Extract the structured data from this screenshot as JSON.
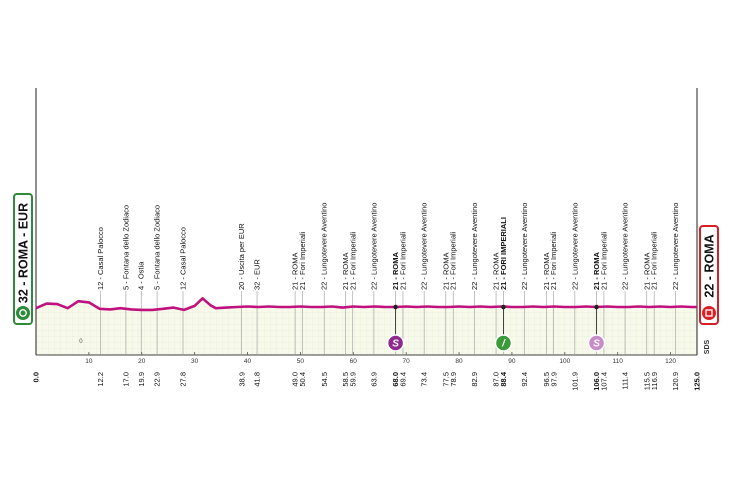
{
  "chart_data": {
    "type": "area",
    "x_unit": "km",
    "xlim": [
      0,
      125
    ],
    "start": {
      "label": "32 - ROMA - EUR",
      "border_color": "#2e8b3a"
    },
    "finish": {
      "label": "22 - ROMA",
      "border_color": "#d81f26"
    },
    "km_ticks": [
      10,
      20,
      30,
      40,
      50,
      60,
      70,
      80,
      90,
      100,
      110,
      120
    ],
    "axis_bottom_marks": [
      {
        "km": 0.0,
        "text": "0.0",
        "bold": true
      },
      {
        "km": 12.2,
        "text": "12.2"
      },
      {
        "km": 17.0,
        "text": "17.0"
      },
      {
        "km": 19.9,
        "text": "19.9"
      },
      {
        "km": 22.9,
        "text": "22.9"
      },
      {
        "km": 27.8,
        "text": "27.8"
      },
      {
        "km": 38.9,
        "text": "38.9"
      },
      {
        "km": 41.8,
        "text": "41.8"
      },
      {
        "km": 49.0,
        "text": "49.0"
      },
      {
        "km": 50.4,
        "text": "50.4"
      },
      {
        "km": 54.5,
        "text": "54.5"
      },
      {
        "km": 58.5,
        "text": "58.5"
      },
      {
        "km": 59.9,
        "text": "59.9"
      },
      {
        "km": 63.9,
        "text": "63.9"
      },
      {
        "km": 68.0,
        "text": "68.0",
        "bold": true
      },
      {
        "km": 69.4,
        "text": "69.4"
      },
      {
        "km": 73.4,
        "text": "73.4"
      },
      {
        "km": 77.5,
        "text": "77.5"
      },
      {
        "km": 78.9,
        "text": "78.9"
      },
      {
        "km": 82.9,
        "text": "82.9"
      },
      {
        "km": 87.0,
        "text": "87.0"
      },
      {
        "km": 88.4,
        "text": "88.4",
        "bold": true
      },
      {
        "km": 92.4,
        "text": "92.4"
      },
      {
        "km": 96.5,
        "text": "96.5"
      },
      {
        "km": 97.9,
        "text": "97.9"
      },
      {
        "km": 101.9,
        "text": "101.9"
      },
      {
        "km": 106.0,
        "text": "106.0",
        "bold": true
      },
      {
        "km": 107.4,
        "text": "107.4"
      },
      {
        "km": 111.4,
        "text": "111.4"
      },
      {
        "km": 115.5,
        "text": "115.5"
      },
      {
        "km": 116.9,
        "text": "116.9"
      },
      {
        "km": 120.9,
        "text": "120.9"
      },
      {
        "km": 125.0,
        "text": "125.0",
        "bold": true
      }
    ],
    "waypoints": [
      {
        "km": 12.2,
        "text": "12 - Casal Palocco"
      },
      {
        "km": 17.0,
        "text": "5 - Fontana dello Zodiaco"
      },
      {
        "km": 19.9,
        "text": "4 - Ostia"
      },
      {
        "km": 22.9,
        "text": "5 - Fontana dello Zodiaco"
      },
      {
        "km": 27.8,
        "text": "12 - Casal Palocco"
      },
      {
        "km": 38.9,
        "text": "20 - Uscita per EUR"
      },
      {
        "km": 41.8,
        "text": "32 - EUR"
      },
      {
        "km": 49.0,
        "text": "21 - ROMA"
      },
      {
        "km": 50.4,
        "text": "21 - Fori Imperiali"
      },
      {
        "km": 54.5,
        "text": "22 - Lungotevere Aventino"
      },
      {
        "km": 58.5,
        "text": "21 - ROMA"
      },
      {
        "km": 59.9,
        "text": "21 - Fori Imperiali"
      },
      {
        "km": 63.9,
        "text": "22 - Lungotevere Aventino"
      },
      {
        "km": 68.0,
        "text": "21 - ROMA",
        "bold": true
      },
      {
        "km": 69.4,
        "text": "21 - Fori Imperiali"
      },
      {
        "km": 73.4,
        "text": "22 - Lungotevere Aventino"
      },
      {
        "km": 77.5,
        "text": "21 - ROMA"
      },
      {
        "km": 78.9,
        "text": "21 - Fori Imperiali"
      },
      {
        "km": 82.9,
        "text": "22 - Lungotevere Aventino"
      },
      {
        "km": 87.0,
        "text": "21 - ROMA"
      },
      {
        "km": 88.4,
        "text": "21 - FORI IMPERIALI",
        "bold": true
      },
      {
        "km": 92.4,
        "text": "22 - Lungotevere Aventino"
      },
      {
        "km": 96.5,
        "text": "21 - ROMA"
      },
      {
        "km": 97.9,
        "text": "21 - Fori Imperiali"
      },
      {
        "km": 101.9,
        "text": "22 - Lungotevere Aventino"
      },
      {
        "km": 106.0,
        "text": "21 - ROMA",
        "bold": true
      },
      {
        "km": 107.4,
        "text": "21 - Fori Imperiali"
      },
      {
        "km": 111.4,
        "text": "22 - Lungotevere Aventino"
      },
      {
        "km": 115.5,
        "text": "21 - ROMA"
      },
      {
        "km": 116.9,
        "text": "21 - Fori Imperiali"
      },
      {
        "km": 120.9,
        "text": "22 - Lungotevere Aventino"
      }
    ],
    "sprints": [
      {
        "km": 68.0,
        "symbol": "S",
        "color": "#8e2a8f"
      },
      {
        "km": 88.4,
        "symbol": "/",
        "color": "#3c9a3a"
      },
      {
        "km": 106.0,
        "symbol": "S",
        "color": "#c98bc7"
      }
    ],
    "small_labels": [
      {
        "km": 8.5,
        "text": "0"
      },
      {
        "km": 124.2,
        "text": "SDS"
      }
    ],
    "profile": {
      "note_elevation": "relative",
      "km": [
        0,
        2,
        4,
        6,
        8,
        10,
        12,
        14,
        16,
        18,
        20,
        22,
        24,
        26,
        28,
        30,
        31.5,
        33,
        34,
        36,
        38,
        40,
        42,
        44,
        46,
        48,
        50,
        52,
        54,
        56,
        58,
        60,
        62,
        64,
        66,
        68,
        70,
        72,
        74,
        76,
        78,
        80,
        82,
        84,
        86,
        88,
        90,
        92,
        94,
        96,
        98,
        100,
        102,
        104,
        106,
        108,
        110,
        112,
        114,
        116,
        118,
        120,
        122,
        124,
        125
      ],
      "elev": [
        10,
        18,
        17,
        10,
        22,
        20,
        9,
        8,
        10,
        8,
        7,
        7,
        9,
        11,
        7,
        14,
        27,
        15,
        10,
        11,
        12,
        13,
        12,
        13,
        12,
        12,
        13,
        12,
        12,
        13,
        11,
        13,
        12,
        13,
        12,
        12,
        13,
        12,
        13,
        12,
        12,
        13,
        12,
        13,
        12,
        13,
        12,
        12,
        13,
        12,
        13,
        12,
        12,
        13,
        12,
        13,
        12,
        12,
        13,
        12,
        13,
        12,
        13,
        12,
        12
      ]
    }
  }
}
